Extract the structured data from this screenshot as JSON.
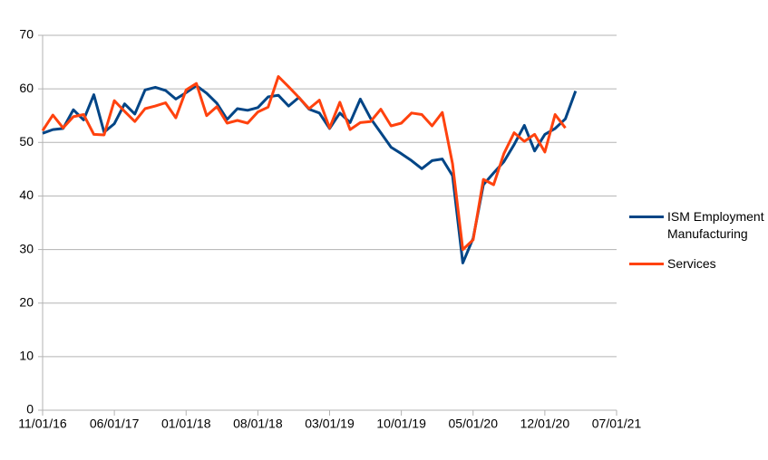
{
  "chart_data": {
    "type": "line",
    "x": [
      "11/01/16",
      "12/01/16",
      "01/01/17",
      "02/01/17",
      "03/01/17",
      "04/01/17",
      "05/01/17",
      "06/01/17",
      "07/01/17",
      "08/01/17",
      "09/01/17",
      "10/01/17",
      "11/01/17",
      "12/01/17",
      "01/01/18",
      "02/01/18",
      "03/01/18",
      "04/01/18",
      "05/01/18",
      "06/01/18",
      "07/01/18",
      "08/01/18",
      "09/01/18",
      "10/01/18",
      "11/01/18",
      "12/01/18",
      "01/01/19",
      "02/01/19",
      "03/01/19",
      "04/01/19",
      "05/01/19",
      "06/01/19",
      "07/01/19",
      "08/01/19",
      "09/01/19",
      "10/01/19",
      "11/01/19",
      "12/01/19",
      "01/01/20",
      "02/01/20",
      "03/01/20",
      "04/01/20",
      "05/01/20",
      "06/01/20",
      "07/01/20",
      "08/01/20",
      "09/01/20",
      "10/01/20",
      "11/01/20",
      "12/01/20",
      "01/01/21",
      "02/01/21",
      "03/01/21"
    ],
    "series": [
      {
        "name": "ISM Employment Manufacturing",
        "color": "#004586",
        "values": [
          51.7,
          52.4,
          52.6,
          56.1,
          54.2,
          58.9,
          51.9,
          53.5,
          57.2,
          55.3,
          59.8,
          60.3,
          59.7,
          58.1,
          59.3,
          60.6,
          59.2,
          57.3,
          54.3,
          56.3,
          56.0,
          56.5,
          58.5,
          58.8,
          56.8,
          58.4,
          56.2,
          55.5,
          52.6,
          55.5,
          53.7,
          58.1,
          54.5,
          51.8,
          49.1,
          47.9,
          46.6,
          45.1,
          46.6,
          46.9,
          43.8,
          27.5,
          32.1,
          42.1,
          44.3,
          46.4,
          49.6,
          53.2,
          48.4,
          51.5,
          52.6,
          54.4,
          59.6
        ]
      },
      {
        "name": "Services",
        "color": "#ff420e",
        "values": [
          52.2,
          55.1,
          52.7,
          54.8,
          55.2,
          51.5,
          51.4,
          57.8,
          55.8,
          53.9,
          56.3,
          56.8,
          57.4,
          54.6,
          59.8,
          61.0,
          55.0,
          56.7,
          53.6,
          54.1,
          53.6,
          55.7,
          56.6,
          62.3,
          60.4,
          58.4,
          56.3,
          57.9,
          52.7,
          57.5,
          52.4,
          53.7,
          53.9,
          56.2,
          53.1,
          53.6,
          55.5,
          55.2,
          53.1,
          55.6,
          46.0,
          30.0,
          31.8,
          43.1,
          42.1,
          47.9,
          51.8,
          50.2,
          51.5,
          48.2,
          55.2,
          52.7,
          null
        ]
      }
    ],
    "xlim": [
      "11/01/16",
      "07/01/21"
    ],
    "xticks": [
      "11/01/16",
      "06/01/17",
      "01/01/18",
      "08/01/18",
      "03/01/19",
      "10/01/19",
      "05/01/20",
      "12/01/20",
      "07/01/21"
    ],
    "ylim": [
      0,
      70
    ],
    "yticks": [
      0,
      10,
      20,
      30,
      40,
      50,
      60,
      70
    ],
    "grid": true,
    "legend": "right"
  }
}
